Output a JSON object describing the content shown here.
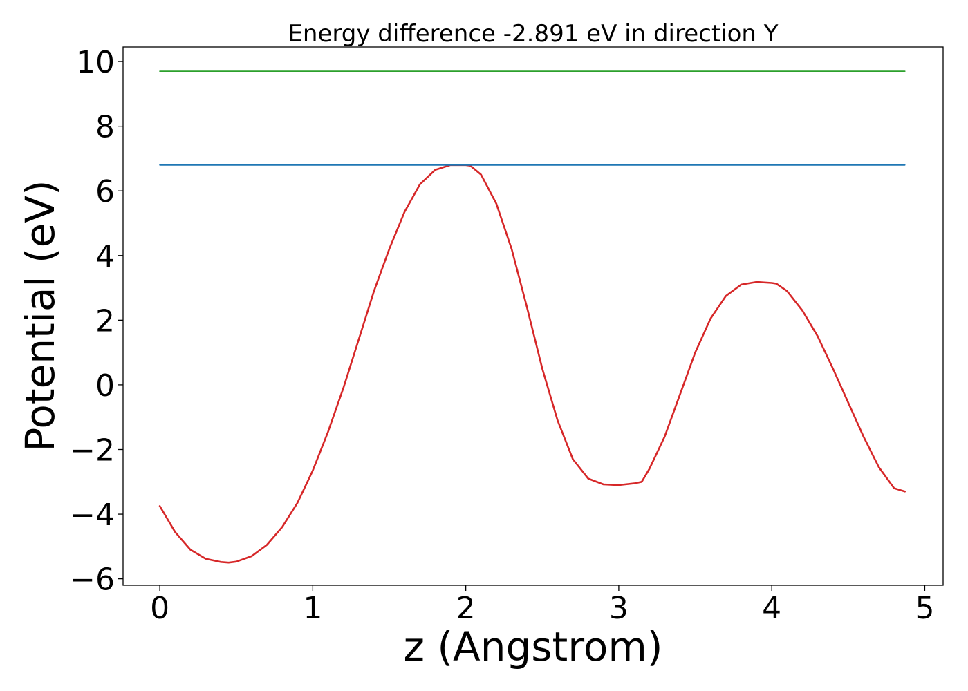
{
  "chart_data": {
    "type": "line",
    "title": "Energy difference -2.891 eV in direction Y",
    "xlabel": "z (Angstrom)",
    "ylabel": "Potential (eV)",
    "xlim": [
      -0.24,
      5.12
    ],
    "ylim": [
      -6.2,
      10.45
    ],
    "xticks": [
      0,
      1,
      2,
      3,
      4,
      5
    ],
    "xtick_labels": [
      "0",
      "1",
      "2",
      "3",
      "4",
      "5"
    ],
    "yticks": [
      -6,
      -4,
      -2,
      0,
      2,
      4,
      6,
      8,
      10
    ],
    "ytick_labels": [
      "−6",
      "−4",
      "−2",
      "0",
      "2",
      "4",
      "6",
      "8",
      "10"
    ],
    "grid": false,
    "legend": "none",
    "series": [
      {
        "color": "#d62728",
        "x": [
          0.0,
          0.1,
          0.2,
          0.3,
          0.4,
          0.45,
          0.5,
          0.6,
          0.7,
          0.8,
          0.9,
          1.0,
          1.1,
          1.2,
          1.3,
          1.4,
          1.5,
          1.6,
          1.7,
          1.8,
          1.9,
          2.0,
          2.03,
          2.1,
          2.2,
          2.3,
          2.4,
          2.5,
          2.6,
          2.7,
          2.8,
          2.9,
          3.0,
          3.1,
          3.15,
          3.2,
          3.3,
          3.4,
          3.5,
          3.6,
          3.7,
          3.8,
          3.9,
          4.0,
          4.03,
          4.1,
          4.2,
          4.3,
          4.4,
          4.5,
          4.6,
          4.7,
          4.8,
          4.87
        ],
        "y": [
          -3.75,
          -4.55,
          -5.1,
          -5.38,
          -5.48,
          -5.5,
          -5.47,
          -5.3,
          -4.95,
          -4.4,
          -3.65,
          -2.65,
          -1.45,
          -0.1,
          1.4,
          2.9,
          4.2,
          5.35,
          6.2,
          6.65,
          6.8,
          6.8,
          6.78,
          6.5,
          5.6,
          4.2,
          2.4,
          0.5,
          -1.1,
          -2.3,
          -2.9,
          -3.08,
          -3.1,
          -3.05,
          -3.0,
          -2.6,
          -1.6,
          -0.3,
          1.0,
          2.05,
          2.75,
          3.1,
          3.18,
          3.15,
          3.13,
          2.9,
          2.3,
          1.5,
          0.5,
          -0.55,
          -1.6,
          -2.55,
          -3.2,
          -3.3
        ]
      },
      {
        "color": "#1f77b4",
        "x": [
          0.0,
          4.87
        ],
        "y": [
          6.8,
          6.8
        ]
      },
      {
        "color": "#2ca02c",
        "x": [
          0.0,
          4.87
        ],
        "y": [
          9.7,
          9.7
        ]
      }
    ]
  }
}
